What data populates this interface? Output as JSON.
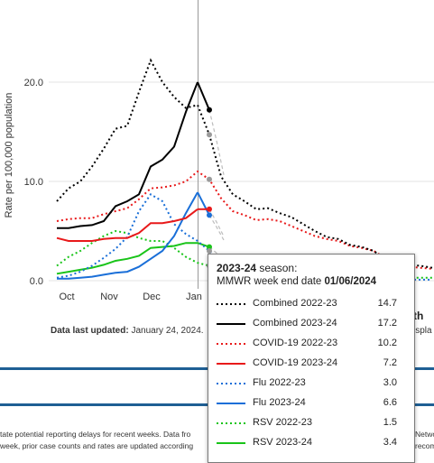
{
  "chart_data": {
    "type": "line",
    "ylabel": "Rate per 100,000 population",
    "y_ticks": [
      "0.0",
      "10.0",
      "20.0"
    ],
    "ylim": [
      0,
      26
    ],
    "x_ticks": [
      "Oct",
      "Nov",
      "Dec",
      "Jan"
    ],
    "grid": "horizontal",
    "series": [
      {
        "name": "Combined 2022-23",
        "color": "#000000",
        "style": "dotted",
        "values": [
          8.0,
          9.3,
          10.0,
          11.5,
          13.3,
          15.3,
          15.6,
          19.0,
          22.2,
          20.0,
          18.5,
          17.4,
          17.7,
          14.7,
          10.5,
          8.7,
          8.0,
          7.2,
          7.3,
          6.8,
          6.4,
          5.7,
          5.0,
          4.4,
          4.2,
          3.6,
          3.4,
          3.0,
          2.2,
          1.9,
          1.6,
          1.5,
          1.3
        ]
      },
      {
        "name": "Combined 2023-24",
        "color": "#000000",
        "style": "solid",
        "values": [
          5.3,
          5.3,
          5.5,
          5.6,
          6.0,
          7.5,
          8.0,
          8.7,
          11.5,
          12.2,
          13.5,
          17.0,
          20.0,
          17.2
        ]
      },
      {
        "name": "COVID-19 2022-23",
        "color": "#e8191a",
        "style": "dotted",
        "values": [
          6.0,
          6.2,
          6.3,
          6.3,
          6.7,
          7.0,
          7.3,
          8.2,
          9.3,
          9.4,
          9.6,
          10.0,
          11.0,
          10.2,
          8.3,
          7.0,
          6.6,
          6.1,
          6.2,
          6.0,
          5.5,
          5.0,
          4.5,
          4.2,
          4.0,
          3.5,
          3.3,
          3.0,
          2.3,
          1.8,
          1.4,
          1.3,
          1.2
        ]
      },
      {
        "name": "COVID-19 2023-24",
        "color": "#e8191a",
        "style": "solid",
        "values": [
          4.3,
          4.0,
          4.0,
          4.0,
          4.2,
          4.3,
          4.3,
          4.8,
          5.8,
          5.8,
          6.0,
          6.3,
          7.2,
          7.2
        ]
      },
      {
        "name": "Flu 2022-23",
        "color": "#1a6fd8",
        "style": "dotted",
        "values": [
          0.3,
          0.5,
          0.9,
          1.5,
          2.3,
          3.2,
          4.4,
          7.0,
          8.7,
          8.0,
          5.7,
          4.7,
          4.0,
          3.0,
          1.8,
          1.0,
          0.7,
          0.5,
          0.4,
          0.4,
          0.3,
          0.3,
          0.2,
          0.2,
          0.2,
          0.2,
          0.2,
          0.1,
          0.1,
          0.1,
          0.1,
          0.1,
          0.1
        ]
      },
      {
        "name": "Flu 2023-24",
        "color": "#1a6fd8",
        "style": "solid",
        "values": [
          0.2,
          0.2,
          0.3,
          0.4,
          0.6,
          0.8,
          0.9,
          1.4,
          2.2,
          3.0,
          4.5,
          6.8,
          8.9,
          6.6
        ]
      },
      {
        "name": "RSV 2022-23",
        "color": "#19c419",
        "style": "dotted",
        "values": [
          1.5,
          2.4,
          3.0,
          3.8,
          4.5,
          5.0,
          4.8,
          4.3,
          4.0,
          4.0,
          3.3,
          2.4,
          1.8,
          1.5,
          1.1,
          0.9,
          0.8,
          0.7,
          0.6,
          0.5,
          0.5,
          0.5,
          0.4,
          0.4,
          0.4,
          0.3,
          0.3,
          0.3,
          0.3,
          0.3,
          0.3,
          0.3,
          0.3
        ]
      },
      {
        "name": "RSV 2023-24",
        "color": "#19c419",
        "style": "solid",
        "values": [
          0.7,
          0.9,
          1.1,
          1.3,
          1.6,
          2.0,
          2.2,
          2.5,
          3.3,
          3.4,
          3.5,
          3.8,
          3.8,
          3.4
        ]
      }
    ]
  },
  "footer": {
    "updated_label": "Data last updated:",
    "updated_value": "January 24, 2024.",
    "right_heading": "th",
    "right_text": "ispla",
    "note_line1": "tate potential reporting delays for recent weeks. Data fro",
    "note_line1_right": "Netwo",
    "note_line2": "week, prior case counts and rates are updated according",
    "note_line2_right": "recom"
  },
  "tooltip": {
    "season_bold": "2023-24",
    "season_text": " season:",
    "date_label": "MMWR week end date ",
    "date_value": "01/06/2024",
    "rows": [
      {
        "name": "Combined 2022-23",
        "value": "14.7",
        "color": "#000000",
        "style": "dotted"
      },
      {
        "name": "Combined 2023-24",
        "value": "17.2",
        "color": "#000000",
        "style": "solid"
      },
      {
        "name": "COVID-19 2022-23",
        "value": "10.2",
        "color": "#e8191a",
        "style": "dotted"
      },
      {
        "name": "COVID-19 2023-24",
        "value": "7.2",
        "color": "#e8191a",
        "style": "solid"
      },
      {
        "name": "Flu 2022-23",
        "value": "3.0",
        "color": "#1a6fd8",
        "style": "dotted"
      },
      {
        "name": "Flu 2023-24",
        "value": "6.6",
        "color": "#1a6fd8",
        "style": "solid"
      },
      {
        "name": "RSV 2022-23",
        "value": "1.5",
        "color": "#19c419",
        "style": "dotted"
      },
      {
        "name": "RSV 2023-24",
        "value": "3.4",
        "color": "#19c419",
        "style": "solid"
      }
    ]
  }
}
